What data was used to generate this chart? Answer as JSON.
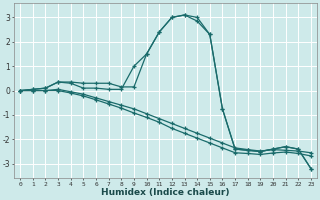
{
  "xlabel": "Humidex (Indice chaleur)",
  "bg_color": "#ceeaea",
  "line_color": "#1a6b6b",
  "grid_color": "#ffffff",
  "xlim": [
    -0.5,
    23.5
  ],
  "ylim": [
    -3.6,
    3.6
  ],
  "xticks": [
    0,
    1,
    2,
    3,
    4,
    5,
    6,
    7,
    8,
    9,
    10,
    11,
    12,
    13,
    14,
    15,
    16,
    17,
    18,
    19,
    20,
    21,
    22,
    23
  ],
  "yticks": [
    -3,
    -2,
    -1,
    0,
    1,
    2,
    3
  ],
  "lines": [
    [
      0.0,
      0.05,
      0.1,
      0.35,
      0.35,
      0.3,
      0.3,
      0.3,
      0.15,
      0.15,
      1.5,
      2.4,
      3.0,
      3.1,
      3.0,
      2.3,
      -0.75,
      -2.4,
      -2.45,
      -2.5,
      -2.4,
      -2.3,
      -2.4,
      -3.2
    ],
    [
      0.0,
      0.05,
      0.1,
      0.35,
      0.3,
      0.1,
      0.1,
      0.05,
      0.05,
      1.0,
      1.5,
      2.4,
      3.0,
      3.1,
      2.85,
      2.3,
      -0.75,
      -2.4,
      -2.45,
      -2.5,
      -2.4,
      -2.3,
      -2.4,
      -3.2
    ],
    [
      0.0,
      0.0,
      0.0,
      0.05,
      -0.05,
      -0.15,
      -0.3,
      -0.45,
      -0.6,
      -0.75,
      -0.95,
      -1.15,
      -1.35,
      -1.55,
      -1.75,
      -1.95,
      -2.15,
      -2.35,
      -2.42,
      -2.48,
      -2.42,
      -2.45,
      -2.48,
      -2.55
    ],
    [
      0.0,
      0.0,
      0.0,
      0.0,
      -0.1,
      -0.22,
      -0.38,
      -0.55,
      -0.72,
      -0.92,
      -1.1,
      -1.3,
      -1.55,
      -1.75,
      -1.95,
      -2.15,
      -2.35,
      -2.55,
      -2.58,
      -2.62,
      -2.56,
      -2.52,
      -2.58,
      -2.68
    ]
  ]
}
